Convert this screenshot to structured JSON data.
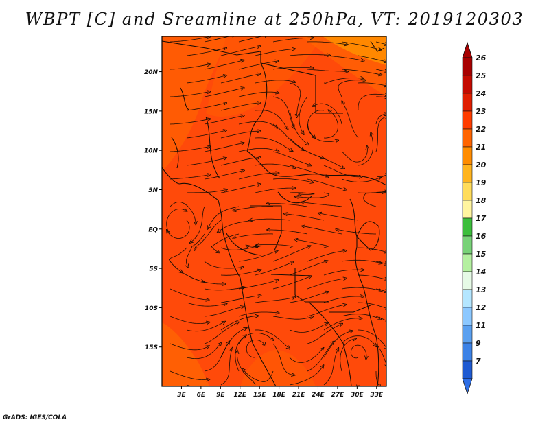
{
  "title": "WBPT [C] and Sreamline at 250hPa, VT: 2019120303",
  "credit": "GrADS: IGES/COLA",
  "map": {
    "fill_color": "#ff4a0a",
    "line_color": "#1a0d05",
    "lat_labels": [
      "20N",
      "15N",
      "10N",
      "5N",
      "EQ",
      "5S",
      "10S",
      "15S"
    ],
    "lat_values": [
      20,
      15,
      10,
      5,
      0,
      -5,
      -10,
      -15
    ],
    "lon_labels": [
      "3E",
      "6E",
      "9E",
      "12E",
      "15E",
      "18E",
      "21E",
      "24E",
      "27E",
      "30E",
      "33E"
    ],
    "lon_values": [
      3,
      6,
      9,
      12,
      15,
      18,
      21,
      24,
      27,
      30,
      33
    ],
    "lon_range": [
      0,
      34.5
    ],
    "lat_range": [
      -20,
      24.5
    ]
  },
  "colorbar": {
    "levels": [
      {
        "label": "26",
        "color": "#a80000"
      },
      {
        "label": "25",
        "color": "#c40a00"
      },
      {
        "label": "24",
        "color": "#e01e00"
      },
      {
        "label": "23",
        "color": "#ff3c00"
      },
      {
        "label": "22",
        "color": "#ff6400"
      },
      {
        "label": "21",
        "color": "#ff8c00"
      },
      {
        "label": "20",
        "color": "#ffb41e"
      },
      {
        "label": "19",
        "color": "#ffdc5a"
      },
      {
        "label": "18",
        "color": "#fff5a0"
      },
      {
        "label": "17",
        "color": "#3cbe3c"
      },
      {
        "label": "16",
        "color": "#78d278"
      },
      {
        "label": "15",
        "color": "#b4f0a0"
      },
      {
        "label": "14",
        "color": "#e6fae6"
      },
      {
        "label": "13",
        "color": "#b4e6ff"
      },
      {
        "label": "12",
        "color": "#8cc8ff"
      },
      {
        "label": "11",
        "color": "#5aa0f0"
      },
      {
        "label": "9",
        "color": "#3c82e6"
      },
      {
        "label": "7",
        "color": "#1e5ad2"
      }
    ],
    "bottom_color": "#2d6ee6"
  }
}
